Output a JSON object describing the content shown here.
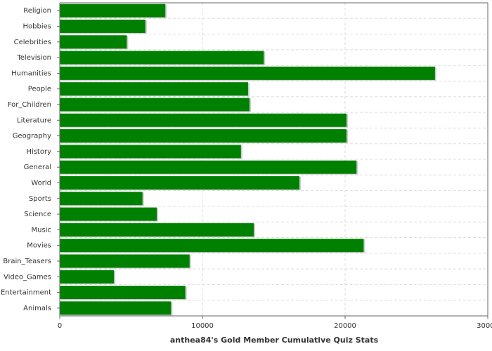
{
  "chart_data": {
    "type": "bar",
    "orientation": "horizontal",
    "x_label": "anthea84's Gold Member Cumulative Quiz Stats",
    "categories": [
      "Religion",
      "Hobbies",
      "Celebrities",
      "Television",
      "Humanities",
      "People",
      "For_Children",
      "Literature",
      "Geography",
      "History",
      "General",
      "World",
      "Sports",
      "Science",
      "Music",
      "Movies",
      "Brain_Teasers",
      "Video_Games",
      "Entertainment",
      "Animals"
    ],
    "values": [
      7400,
      6000,
      4700,
      14300,
      26300,
      13200,
      13300,
      20100,
      20100,
      12700,
      20800,
      16800,
      5800,
      6800,
      13600,
      21300,
      9100,
      3800,
      8800,
      7800
    ],
    "color": "#008000",
    "xlim": [
      0,
      30000
    ],
    "xticks": [
      0,
      10000,
      20000,
      30000
    ],
    "grid": true
  }
}
